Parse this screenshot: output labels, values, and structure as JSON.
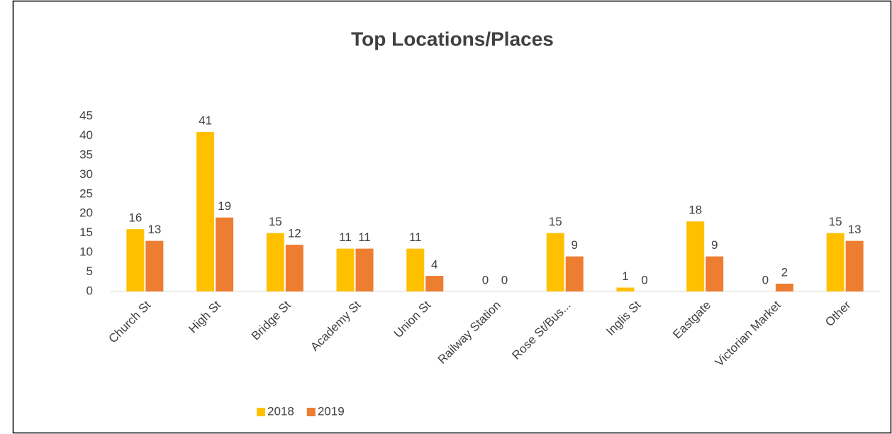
{
  "chart_data": {
    "type": "bar",
    "title": "Top Locations/Places",
    "categories": [
      "Church St",
      "High St",
      "Bridge St",
      "Academy St",
      "Union St",
      "Railway Station",
      "Rose St/Bus...",
      "Inglis St",
      "Eastgate",
      "Victorian Market",
      "Other"
    ],
    "series": [
      {
        "name": "2018",
        "color": "#FFC000",
        "values": [
          16,
          41,
          15,
          11,
          11,
          0,
          15,
          1,
          18,
          0,
          15
        ]
      },
      {
        "name": "2019",
        "color": "#ED7D31",
        "values": [
          13,
          19,
          12,
          11,
          4,
          0,
          9,
          0,
          9,
          2,
          13
        ]
      }
    ],
    "ylim": [
      0,
      45
    ],
    "yticks": [
      0,
      5,
      10,
      15,
      20,
      25,
      30,
      35,
      40,
      45
    ],
    "grid": false,
    "legend": "bottom"
  }
}
